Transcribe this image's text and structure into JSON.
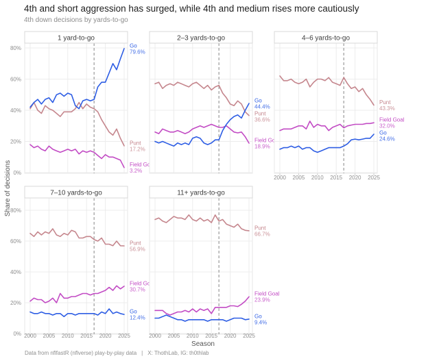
{
  "header": {
    "title": "4th and short aggression has surged, while 4th and medium rises more cautiously",
    "subtitle": "4th down decisions by yards-to-go"
  },
  "axes": {
    "x_title": "Season",
    "y_title": "Share of decisions",
    "x_tick_values": [
      2000,
      2005,
      2010,
      2015,
      2020,
      2025
    ],
    "x_tick_labels": [
      "2000",
      "2005",
      "2010",
      "2015",
      "2020",
      "2025"
    ],
    "y_tick_values": [
      0,
      20,
      40,
      60,
      80
    ],
    "y_tick_labels": [
      "0%",
      "20%",
      "40%",
      "60%",
      "80%"
    ]
  },
  "series_colors": {
    "Go": "#2d5de4",
    "Punt": "#c5868d",
    "Field Goal": "#c24bc4"
  },
  "reference_line": {
    "x": 2017,
    "color": "#9a9a9a",
    "style": "dashed"
  },
  "chart_data": [
    {
      "type": "line",
      "facet": "1 yard-to-go",
      "row": 0,
      "col": 0,
      "x_start": 2000,
      "x_end": 2025,
      "vline_x": 2017,
      "show_x_axis": false,
      "ylim": [
        0,
        83
      ],
      "series": [
        {
          "name": "Punt",
          "end_label": "17.2%",
          "values": [
            41,
            45,
            40,
            38,
            43,
            41,
            40,
            38,
            36,
            39,
            39,
            39,
            41,
            45,
            41,
            44,
            42,
            41,
            39,
            34,
            30,
            26,
            24,
            28,
            22,
            17.2
          ]
        },
        {
          "name": "Field Goal",
          "end_label": "3.2%",
          "values": [
            18,
            16,
            17,
            15,
            14,
            17,
            15,
            14,
            13,
            14,
            15,
            14,
            15,
            12,
            14,
            13,
            14,
            13,
            11,
            9,
            11.5,
            10,
            10,
            9,
            8,
            3.2
          ]
        },
        {
          "name": "Go",
          "end_label": "79.6%",
          "values": [
            42,
            45,
            47,
            44,
            47,
            48,
            45,
            50,
            51,
            49,
            51,
            50,
            43,
            41,
            46,
            47,
            46,
            47,
            55,
            58,
            58,
            64,
            70,
            66,
            73,
            79.6
          ]
        }
      ]
    },
    {
      "type": "line",
      "facet": "2–3 yards-to-go",
      "row": 0,
      "col": 1,
      "x_start": 2000,
      "x_end": 2025,
      "vline_x": 2017,
      "show_x_axis": false,
      "ylim": [
        0,
        83
      ],
      "series": [
        {
          "name": "Punt",
          "end_label": "36.6%",
          "values": [
            57,
            58,
            54,
            56,
            57,
            56,
            58,
            57,
            56,
            55,
            57,
            58,
            56,
            54,
            56,
            53,
            55,
            56,
            51,
            48,
            44,
            43,
            46,
            44,
            39,
            36.6
          ]
        },
        {
          "name": "Field Goal",
          "end_label": "18.9%",
          "values": [
            26,
            25,
            28,
            27,
            26,
            26,
            27,
            26,
            25,
            26,
            28,
            29,
            30,
            29,
            30,
            31,
            30,
            29,
            29,
            30,
            28,
            26,
            25.5,
            26,
            23,
            18.9
          ]
        },
        {
          "name": "Go",
          "end_label": "44.4%",
          "values": [
            20,
            19,
            20,
            19,
            18,
            17,
            19,
            18,
            19,
            18,
            22,
            23,
            22,
            19,
            18,
            19,
            21,
            21,
            27,
            31,
            34,
            36,
            37,
            35,
            40,
            44.4
          ]
        }
      ]
    },
    {
      "type": "line",
      "facet": "4–6 yards-to-go",
      "row": 0,
      "col": 2,
      "x_start": 2000,
      "x_end": 2025,
      "vline_x": 2017,
      "show_x_axis": true,
      "ylim": [
        0,
        83
      ],
      "series": [
        {
          "name": "Punt",
          "end_label": "43.3%",
          "values": [
            62,
            59,
            59,
            60,
            58,
            57,
            58,
            60,
            55,
            58,
            60,
            60,
            59,
            61,
            58,
            57,
            56,
            61,
            57,
            54,
            55,
            52,
            54,
            50,
            47,
            43.3
          ]
        },
        {
          "name": "Field Goal",
          "end_label": "32.0%",
          "values": [
            27,
            28,
            28,
            28,
            29,
            30,
            30,
            28,
            33,
            29,
            31,
            30,
            30,
            27,
            29,
            30,
            31,
            28.7,
            30,
            30.5,
            31,
            31,
            31,
            31.5,
            31.5,
            32.0
          ]
        },
        {
          "name": "Go",
          "end_label": "24.6%",
          "values": [
            15,
            16,
            16,
            17,
            16,
            17,
            15,
            16,
            16,
            14,
            13,
            14,
            15,
            16,
            16,
            16,
            16,
            17,
            18.5,
            21,
            21.5,
            21,
            21.5,
            22,
            22,
            24.6
          ]
        }
      ]
    },
    {
      "type": "line",
      "facet": "7–10 yards-to-go",
      "row": 1,
      "col": 0,
      "x_start": 2000,
      "x_end": 2025,
      "vline_x": 2017,
      "show_x_axis": true,
      "ylim": [
        0,
        83
      ],
      "series": [
        {
          "name": "Punt",
          "end_label": "56.9%",
          "values": [
            65,
            63,
            66,
            64,
            66,
            65,
            68,
            64,
            63,
            65,
            64,
            67,
            66,
            62,
            62,
            63,
            63,
            61,
            60,
            62,
            58,
            58,
            57,
            60,
            57,
            56.9
          ]
        },
        {
          "name": "Field Goal",
          "end_label": "30.7%",
          "values": [
            21,
            23,
            22,
            22,
            20,
            21,
            23,
            20,
            26,
            23,
            23,
            24,
            24,
            25,
            26,
            26,
            25,
            26,
            26,
            27,
            28,
            30,
            28,
            31,
            29,
            30.7
          ]
        },
        {
          "name": "Go",
          "end_label": "12.4%",
          "values": [
            14,
            13,
            13,
            14,
            13,
            13,
            12,
            13,
            13,
            11,
            13,
            13,
            12,
            13,
            13,
            13,
            13,
            13,
            12,
            14,
            13,
            16,
            13,
            14,
            13,
            12.4
          ]
        }
      ]
    },
    {
      "type": "line",
      "facet": "11+ yards-to-go",
      "row": 1,
      "col": 1,
      "x_start": 2000,
      "x_end": 2025,
      "vline_x": 2017,
      "show_x_axis": true,
      "ylim": [
        0,
        83
      ],
      "series": [
        {
          "name": "Punt",
          "end_label": "66.7%",
          "values": [
            74,
            75,
            73,
            72,
            74,
            76,
            75,
            75,
            74,
            77,
            74,
            73,
            75,
            73,
            74,
            72,
            77,
            73,
            74,
            71,
            70,
            69,
            71,
            68,
            67,
            66.7
          ]
        },
        {
          "name": "Field Goal",
          "end_label": "23.9%",
          "values": [
            15,
            15,
            15,
            13,
            12,
            13,
            14,
            14,
            15,
            14,
            16,
            14,
            16,
            15,
            16,
            13,
            17,
            17,
            17,
            17,
            18,
            18,
            17.5,
            19,
            21,
            23.9
          ]
        },
        {
          "name": "Go",
          "end_label": "9.4%",
          "values": [
            10,
            10,
            11,
            12,
            11,
            10,
            9,
            9,
            8,
            9,
            9,
            9,
            9,
            9,
            8,
            9,
            9,
            9,
            9,
            8,
            9,
            10,
            10,
            10,
            9,
            9.4
          ]
        }
      ]
    }
  ],
  "footer": {
    "caption_source": "Data from nflfastR (nflverse) play-by-play data",
    "caption_sep": "|",
    "caption_social": "X: ThothLab, IG: th0thlab"
  }
}
